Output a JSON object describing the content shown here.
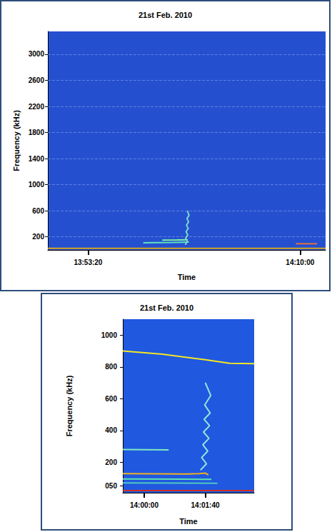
{
  "chart_data": [
    {
      "type": "line",
      "title": "21st Feb. 2010",
      "xlabel": "Time",
      "ylabel": "Frequency (kHz)",
      "xlim": [
        49810,
        51120
      ],
      "ylim": [
        0,
        3350
      ],
      "xticks": [
        {
          "value": 50000,
          "label": "13:53:20"
        },
        {
          "value": 51000,
          "label": "14:10:00"
        }
      ],
      "yticks": [
        200,
        600,
        1000,
        1400,
        1800,
        2200,
        2600,
        3000
      ],
      "grid": true,
      "series": [
        {
          "color": "#d9a520",
          "x": [
            49810,
            51120
          ],
          "values": [
            25,
            25
          ]
        },
        {
          "color": "#5fe0c0",
          "x": [
            50260,
            50400,
            50475
          ],
          "values": [
            110,
            115,
            120
          ]
        },
        {
          "color": "#80f0a0",
          "x": [
            50350,
            50420,
            50470
          ],
          "values": [
            150,
            152,
            155
          ]
        },
        {
          "color": "#7ad7c8",
          "x": [
            50458,
            50468,
            50460,
            50470,
            50462,
            50472,
            50464,
            50474,
            50466,
            50476,
            50468
          ],
          "values": [
            80,
            130,
            180,
            230,
            280,
            330,
            380,
            430,
            480,
            530,
            600
          ]
        },
        {
          "color": "#e07040",
          "x": [
            50980,
            51080
          ],
          "values": [
            95,
            95
          ]
        }
      ]
    },
    {
      "type": "line",
      "title": "21st Feb. 2010",
      "xlabel": "Time",
      "ylabel": "Frequency (kHz)",
      "xlim": [
        50365,
        50580
      ],
      "ylim": [
        8,
        1100
      ],
      "xticks": [
        {
          "value": 50400,
          "label": "14:00:00"
        },
        {
          "value": 50500,
          "label": "14:01:40"
        }
      ],
      "yticks": [
        {
          "value": 50,
          "label": "050"
        },
        200,
        400,
        600,
        800,
        1000
      ],
      "grid": false,
      "series": [
        {
          "color": "#f5e625",
          "x": [
            50365,
            50430,
            50500,
            50540,
            50580
          ],
          "values": [
            900,
            880,
            845,
            822,
            820
          ]
        },
        {
          "color": "#7fe8c0",
          "x": [
            50365,
            50440
          ],
          "values": [
            280,
            278
          ]
        },
        {
          "color": "#f0b020",
          "x": [
            50365,
            50420,
            50470,
            50490,
            50500,
            50505
          ],
          "values": [
            128,
            127,
            126,
            128,
            132,
            120
          ]
        },
        {
          "color": "#60e0b0",
          "x": [
            50365,
            50510
          ],
          "values": [
            95,
            92
          ]
        },
        {
          "color": "#50c8c0",
          "x": [
            50365,
            50520
          ],
          "values": [
            70,
            68
          ]
        },
        {
          "color": "#d03020",
          "x": [
            50365,
            50580
          ],
          "values": [
            22,
            22
          ]
        },
        {
          "color": "#90e8d8",
          "x": [
            50492,
            50502,
            50494,
            50504,
            50496,
            50506,
            50497,
            50507,
            50498,
            50508,
            50499,
            50509,
            50500
          ],
          "values": [
            150,
            190,
            230,
            270,
            310,
            350,
            390,
            430,
            470,
            510,
            560,
            620,
            700
          ]
        }
      ]
    }
  ]
}
